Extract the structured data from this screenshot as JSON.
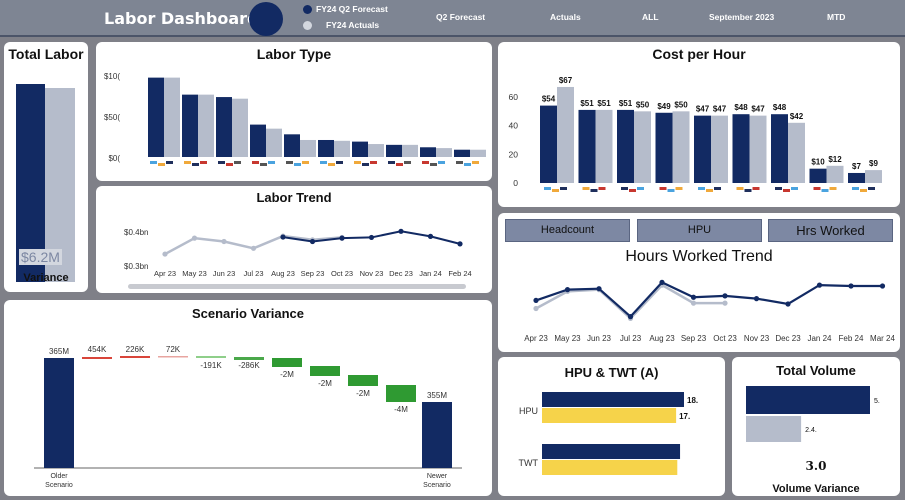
{
  "header": {
    "title": "Labor Dashboard",
    "legend": [
      {
        "label": "FY24 Q2 Forecast",
        "color": "#122a63"
      },
      {
        "label": "FY24 Actuals",
        "color": "#b5bccb"
      }
    ],
    "filters": [
      "Q2 Forecast",
      "Actuals",
      "ALL",
      "September 2023",
      "MTD"
    ]
  },
  "total_labor": {
    "title": "Total Labor",
    "value": "$6.2M",
    "label": "Variance",
    "chart_data": {
      "type": "bar",
      "series": [
        {
          "values": [
            0.98
          ]
        },
        {
          "values": [
            0.96
          ]
        }
      ]
    }
  },
  "labor_type": {
    "title": "Labor Type",
    "chart_data": {
      "type": "bar",
      "yticks": [
        "$10(",
        "$50(",
        "$0("
      ],
      "ylim": [
        0,
        100
      ],
      "series": [
        {
          "values": [
            98,
            77,
            74,
            40,
            28,
            21,
            19,
            15,
            12,
            9
          ]
        },
        {
          "values": [
            98,
            77,
            72,
            35,
            21,
            20,
            16,
            15,
            11,
            9
          ]
        }
      ]
    }
  },
  "labor_trend": {
    "title": "Labor Trend",
    "chart_data": {
      "type": "line",
      "yticks": [
        "$0.4bn",
        "$0.3bn"
      ],
      "x": [
        "Apr 23",
        "May 23",
        "Jun 23",
        "Jul 23",
        "Aug 23",
        "Sep 23",
        "Oct 23",
        "Nov 23",
        "Dec 23",
        "Jan 24",
        "Feb 24"
      ],
      "series": [
        {
          "values": [
            null,
            null,
            null,
            null,
            0.388,
            0.375,
            0.385,
            0.387,
            0.405,
            0.39,
            0.368
          ]
        },
        {
          "values": [
            0.338,
            0.385,
            0.375,
            0.355,
            0.391,
            0.38,
            0.387,
            null,
            null,
            null,
            null
          ]
        }
      ]
    }
  },
  "cost_per_hour": {
    "title": "Cost per Hour",
    "chart_data": {
      "type": "bar",
      "yticks": [
        60,
        40,
        20,
        0
      ],
      "ylim": [
        0,
        72
      ],
      "series": [
        {
          "values": [
            54,
            51,
            51,
            49,
            47,
            48,
            48,
            10,
            7
          ],
          "labels": [
            "$54",
            "$51",
            "$51",
            "$49",
            "$47",
            "$48",
            "$48",
            "$10",
            "$7"
          ]
        },
        {
          "values": [
            67,
            51,
            50,
            50,
            47,
            47,
            42,
            12,
            9
          ],
          "labels": [
            "$67",
            "$51",
            "$50",
            "$50",
            "$47",
            "$47",
            "$42",
            "$12",
            "$9"
          ]
        }
      ]
    }
  },
  "tabs": [
    "Headcount",
    "HPU",
    "Hrs Worked"
  ],
  "hours_trend": {
    "title": "Hours Worked Trend",
    "chart_data": {
      "type": "line",
      "x": [
        "Apr 23",
        "May 23",
        "Jun 23",
        "Jul 23",
        "Aug 23",
        "Sep 23",
        "Oct 23",
        "Nov 23",
        "Dec 23",
        "Jan 24",
        "Feb 24",
        "Mar 24"
      ],
      "series": [
        {
          "values": [
            48,
            72,
            74,
            12,
            88,
            55,
            58,
            52,
            40,
            82,
            80,
            80
          ]
        },
        {
          "values": [
            30,
            68,
            72,
            8,
            82,
            42,
            42,
            null,
            null,
            null,
            null,
            null
          ]
        }
      ]
    }
  },
  "scenario_variance": {
    "title": "Scenario Variance",
    "chart_data": {
      "type": "waterfall",
      "categories": [
        "Older Scenario",
        "",
        "",
        "",
        "",
        "",
        "",
        "",
        "",
        "",
        "Newer Scenario"
      ],
      "values": [
        365,
        0.454,
        0.226,
        0.072,
        -0.191,
        -0.286,
        -2,
        -2,
        -2,
        -4,
        355
      ],
      "labels": [
        "365M",
        "454K",
        "226K",
        "72K",
        "-191K",
        "-286K",
        "-2M",
        "-2M",
        "-2M",
        "-4M",
        "355M"
      ]
    }
  },
  "hpu_twt": {
    "title": "HPU & TWT (A)",
    "chart_data": {
      "type": "bar",
      "categories": [
        "HPU",
        "TWT"
      ],
      "series": [
        {
          "values": [
            18,
            17.5
          ],
          "labels": [
            "18.",
            ""
          ]
        },
        {
          "values": [
            17,
            17.5
          ],
          "labels": [
            "17.",
            ""
          ]
        }
      ]
    }
  },
  "total_volume": {
    "title": "Total Volume",
    "value": "3.0",
    "label": "Volume Variance",
    "chart_data": {
      "type": "bar",
      "series": [
        {
          "values": [
            5.4
          ],
          "labels": [
            "5."
          ]
        },
        {
          "values": [
            2.4
          ],
          "labels": [
            "2.4."
          ]
        }
      ]
    }
  }
}
